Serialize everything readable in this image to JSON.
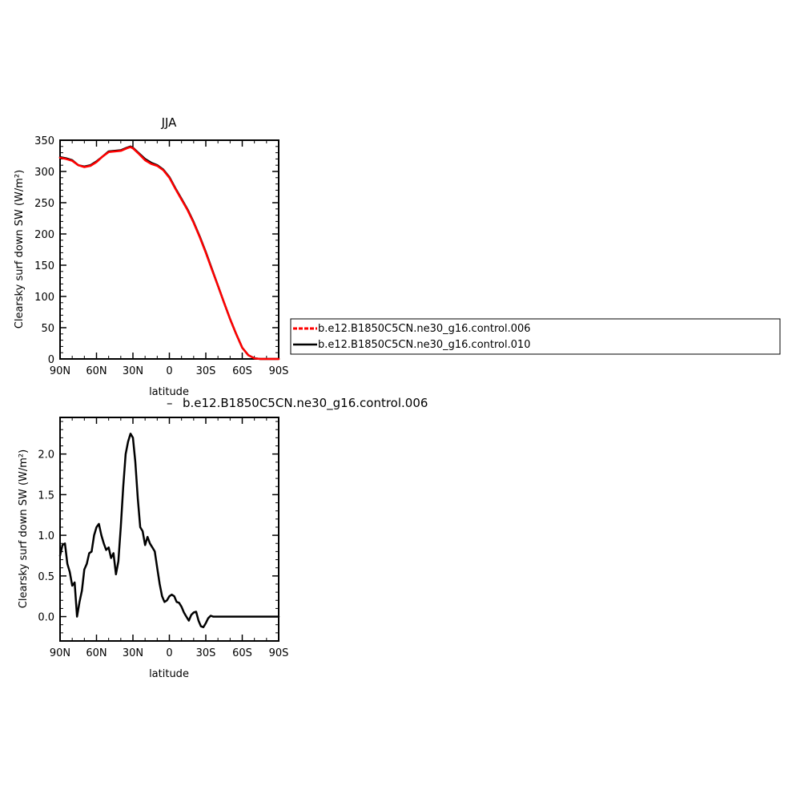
{
  "chart_data": [
    {
      "type": "line",
      "title": "JJA",
      "xlabel": "latitude",
      "ylabel": "Clearsky surf down SW (W/m²)",
      "xticks": [
        "90N",
        "60N",
        "30N",
        "0",
        "30S",
        "60S",
        "90S"
      ],
      "xlim": [
        90,
        -90
      ],
      "ylim": [
        0,
        350
      ],
      "yticks": [
        "0",
        "50",
        "100",
        "150",
        "200",
        "250",
        "300",
        "350"
      ],
      "x": [
        90,
        85,
        80,
        75,
        70,
        65,
        60,
        55,
        50,
        45,
        40,
        35,
        32,
        30,
        25,
        20,
        15,
        10,
        5,
        0,
        -5,
        -10,
        -15,
        -20,
        -25,
        -30,
        -35,
        -40,
        -45,
        -50,
        -55,
        -60,
        -65,
        -70,
        -75,
        -80,
        -85,
        -90
      ],
      "series": [
        {
          "name": "b.e12.B1850C5CN.ne30_g16.control.006",
          "color": "#ff0000",
          "values": [
            322,
            320,
            317,
            310,
            307,
            309,
            315,
            324,
            331,
            332,
            333,
            337,
            339,
            337,
            328,
            318,
            312,
            309,
            302,
            290,
            272,
            255,
            238,
            218,
            195,
            170,
            143,
            117,
            90,
            64,
            40,
            18,
            6,
            1,
            0,
            0,
            0,
            0
          ]
        },
        {
          "name": "b.e12.B1850C5CN.ne30_g16.control.010",
          "color": "#000000",
          "values": [
            323,
            321,
            318,
            310,
            308,
            310,
            316,
            324,
            332,
            333,
            334,
            338,
            340,
            338,
            329,
            320,
            314,
            310,
            303,
            291,
            273,
            256,
            239,
            219,
            196,
            171,
            144,
            117,
            90,
            64,
            40,
            18,
            6,
            1,
            0,
            0,
            0,
            0
          ]
        }
      ],
      "legend": "right"
    },
    {
      "type": "line",
      "title": "b.e12.B1850C5CN.ne30_g16.control.006",
      "xlabel": "latitude",
      "ylabel": "Clearsky surf down SW (W/m²)",
      "xticks": [
        "90N",
        "60N",
        "30N",
        "0",
        "30S",
        "60S",
        "90S"
      ],
      "xlim": [
        90,
        -90
      ],
      "ylim": [
        -0.3,
        2.45
      ],
      "yticks": [
        "0.0",
        "0.5",
        "1.0",
        "1.5",
        "2.0"
      ],
      "x": [
        90,
        88,
        86,
        84,
        82,
        80,
        78,
        76,
        74,
        72,
        70,
        68,
        66,
        64,
        62,
        60,
        58,
        56,
        54,
        52,
        50,
        48,
        46,
        44,
        42,
        40,
        38,
        36,
        34,
        32,
        30,
        28,
        26,
        24,
        22,
        20,
        18,
        16,
        14,
        12,
        10,
        8,
        6,
        4,
        2,
        0,
        -2,
        -4,
        -6,
        -8,
        -10,
        -12,
        -14,
        -16,
        -18,
        -20,
        -22,
        -24,
        -26,
        -28,
        -30,
        -32,
        -34,
        -36,
        -38,
        -40,
        -42,
        -44,
        -46,
        -48,
        -50,
        -52,
        -54,
        -56,
        -58,
        -60,
        -62,
        -64,
        -66,
        -68,
        -70,
        -72,
        -74,
        -76,
        -78,
        -80,
        -82,
        -84,
        -86,
        -88,
        -90
      ],
      "series": [
        {
          "color": "#000000",
          "values": [
            0.75,
            0.88,
            0.9,
            0.65,
            0.55,
            0.38,
            0.42,
            0.0,
            0.18,
            0.32,
            0.58,
            0.65,
            0.78,
            0.8,
            1.0,
            1.1,
            1.14,
            1.0,
            0.9,
            0.82,
            0.85,
            0.72,
            0.78,
            0.52,
            0.68,
            1.1,
            1.6,
            2.0,
            2.15,
            2.25,
            2.2,
            1.9,
            1.45,
            1.1,
            1.05,
            0.88,
            0.98,
            0.9,
            0.85,
            0.8,
            0.6,
            0.4,
            0.25,
            0.18,
            0.2,
            0.25,
            0.27,
            0.25,
            0.18,
            0.17,
            0.12,
            0.05,
            0.0,
            -0.05,
            0.02,
            0.05,
            0.06,
            -0.05,
            -0.12,
            -0.13,
            -0.08,
            -0.02,
            0.01,
            0.0,
            0.0,
            0.0,
            0.0,
            0.0,
            0.0,
            0.0,
            0.0,
            0.0,
            0.0,
            0.0,
            0.0,
            0.0,
            0.0,
            0.0,
            0.0,
            0.0,
            0.0,
            0.0,
            0.0,
            0.0,
            0.0,
            0.0,
            0.0,
            0.0,
            0.0,
            0.0,
            0.0
          ]
        }
      ]
    }
  ]
}
